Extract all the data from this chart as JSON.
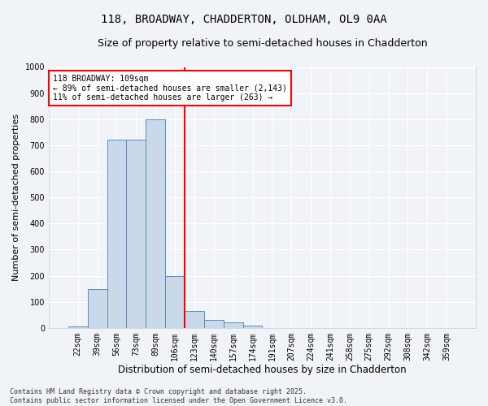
{
  "title1": "118, BROADWAY, CHADDERTON, OLDHAM, OL9 0AA",
  "title2": "Size of property relative to semi-detached houses in Chadderton",
  "xlabel": "Distribution of semi-detached houses by size in Chadderton",
  "ylabel": "Number of semi-detached properties",
  "categories": [
    "22sqm",
    "39sqm",
    "56sqm",
    "73sqm",
    "89sqm",
    "106sqm",
    "123sqm",
    "140sqm",
    "157sqm",
    "174sqm",
    "191sqm",
    "207sqm",
    "224sqm",
    "241sqm",
    "258sqm",
    "275sqm",
    "292sqm",
    "308sqm",
    "342sqm",
    "359sqm"
  ],
  "values": [
    5,
    148,
    720,
    720,
    800,
    200,
    65,
    30,
    20,
    10,
    0,
    0,
    0,
    0,
    0,
    0,
    0,
    0,
    0,
    0
  ],
  "bar_color": "#c9d9ea",
  "bar_edge_color": "#5b8db8",
  "vline_color": "red",
  "annotation_label": "118 BROADWAY: 109sqm",
  "annotation_smaller": "← 89% of semi-detached houses are smaller (2,143)",
  "annotation_larger": "11% of semi-detached houses are larger (263) →",
  "ylim": [
    0,
    1000
  ],
  "yticks": [
    0,
    100,
    200,
    300,
    400,
    500,
    600,
    700,
    800,
    900,
    1000
  ],
  "footer1": "Contains HM Land Registry data © Crown copyright and database right 2025.",
  "footer2": "Contains public sector information licensed under the Open Government Licence v3.0.",
  "fig_bg_color": "#f0f4f8",
  "plot_bg_color": "#f0f4f8",
  "grid_color": "#ffffff",
  "title_fontsize": 10,
  "subtitle_fontsize": 9,
  "ylabel_fontsize": 8,
  "xlabel_fontsize": 8.5,
  "tick_fontsize": 7,
  "footer_fontsize": 6
}
